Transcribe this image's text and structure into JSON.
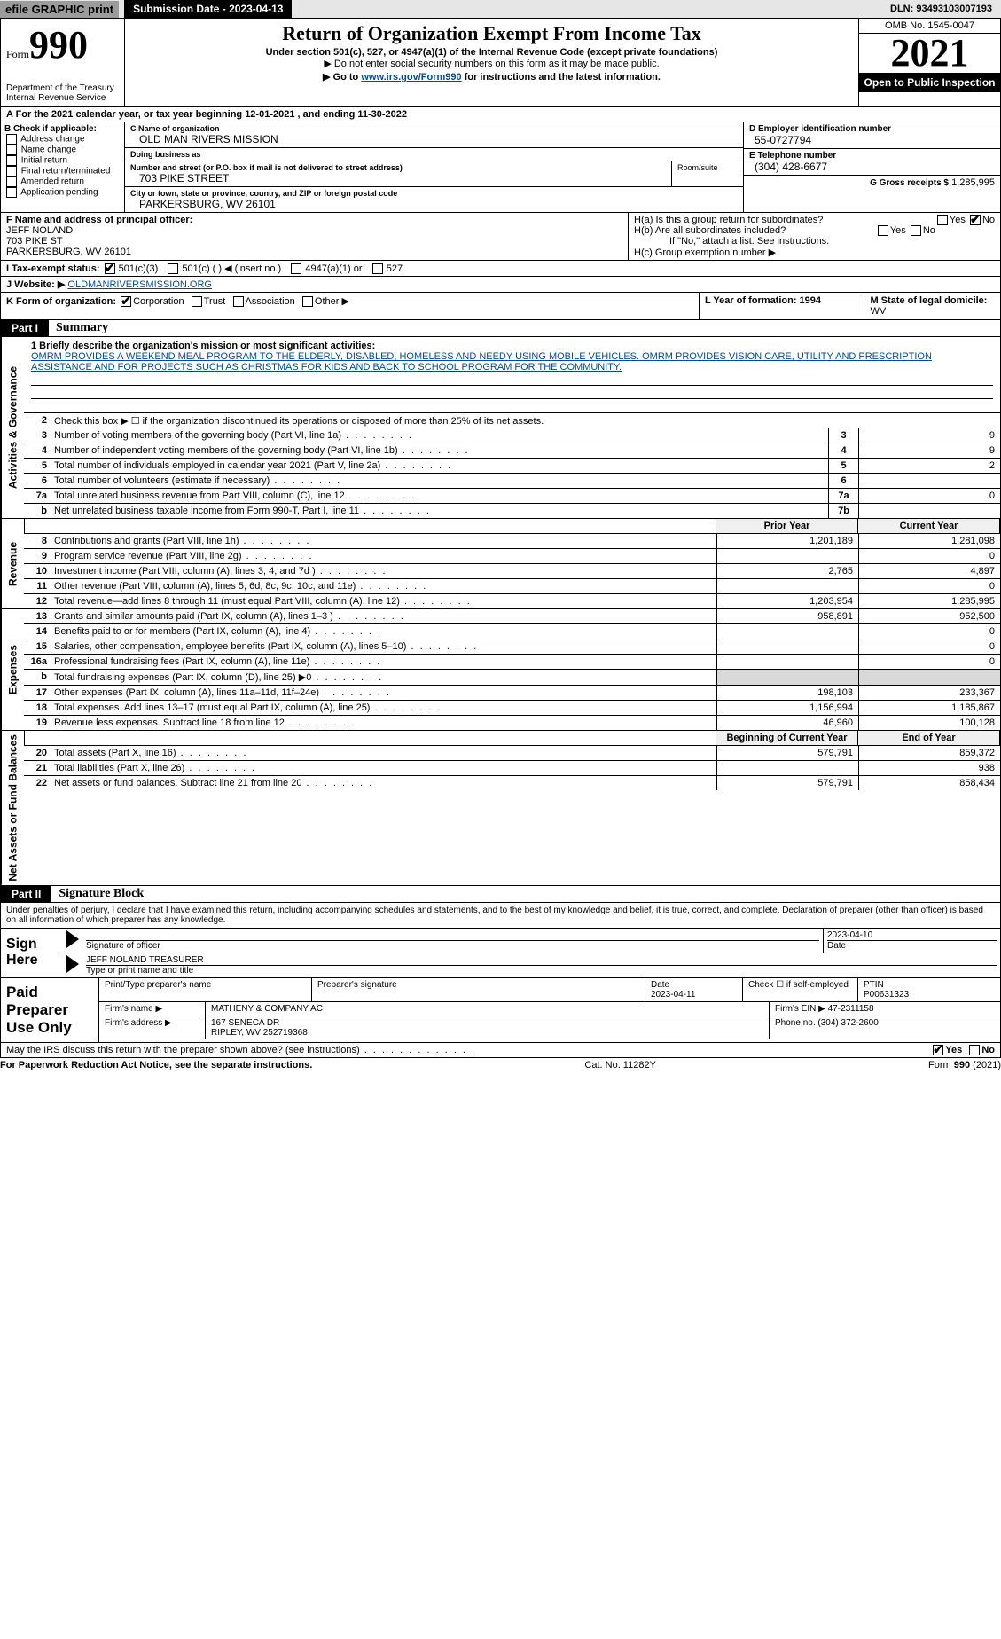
{
  "topbar": {
    "efile": "efile GRAPHIC print",
    "submission": "Submission Date - 2023-04-13",
    "dln": "DLN: 93493103007193"
  },
  "header": {
    "form_label": "Form",
    "form_number": "990",
    "dept": "Department of the Treasury Internal Revenue Service",
    "title": "Return of Organization Exempt From Income Tax",
    "subtitle": "Under section 501(c), 527, or 4947(a)(1) of the Internal Revenue Code (except private foundations)",
    "note1": "▶ Do not enter social security numbers on this form as it may be made public.",
    "note2_pre": "▶ Go to ",
    "note2_link": "www.irs.gov/Form990",
    "note2_post": " for instructions and the latest information.",
    "omb": "OMB No. 1545-0047",
    "year": "2021",
    "open": "Open to Public Inspection"
  },
  "period": "A For the 2021 calendar year, or tax year beginning 12-01-2021    , and ending 11-30-2022",
  "blockB": {
    "label": "B Check if applicable:",
    "opts": [
      "Address change",
      "Name change",
      "Initial return",
      "Final return/terminated",
      "Amended return",
      "Application pending"
    ]
  },
  "blockC": {
    "name_label": "C Name of organization",
    "name": "OLD MAN RIVERS MISSION",
    "dba_label": "Doing business as",
    "dba": "",
    "addr_label": "Number and street (or P.O. box if mail is not delivered to street address)",
    "room_label": "Room/suite",
    "addr": "703 PIKE STREET",
    "city_label": "City or town, state or province, country, and ZIP or foreign postal code",
    "city": "PARKERSBURG, WV  26101"
  },
  "blockDE": {
    "d_label": "D Employer identification number",
    "d_val": "55-0727794",
    "e_label": "E Telephone number",
    "e_val": "(304) 428-6677",
    "g_label": "G Gross receipts $",
    "g_val": "1,285,995"
  },
  "blockF": {
    "label": "F  Name and address of principal officer:",
    "name": "JEFF NOLAND",
    "addr1": "703 PIKE ST",
    "addr2": "PARKERSBURG, WV  26101"
  },
  "blockH": {
    "ha": "H(a)  Is this a group return for subordinates?",
    "hb": "H(b)  Are all subordinates included?",
    "hb_note": "If \"No,\" attach a list. See instructions.",
    "hc": "H(c)  Group exemption number ▶"
  },
  "taxstatus": {
    "label": "I   Tax-exempt status:",
    "opts": [
      "501(c)(3)",
      "501(c) (  ) ◀ (insert no.)",
      "4947(a)(1) or",
      "527"
    ]
  },
  "website": {
    "label": "J   Website: ▶",
    "val": "  OLDMANRIVERSMISSION.ORG"
  },
  "korg": {
    "label": "K Form of organization:",
    "opts": [
      "Corporation",
      "Trust",
      "Association",
      "Other ▶"
    ],
    "l": "L Year of formation: 1994",
    "m_label": "M State of legal domicile:",
    "m_val": "WV"
  },
  "partI": {
    "bar": "Part I",
    "title": "Summary",
    "mission_label": "1  Briefly describe the organization's mission or most significant activities:",
    "mission": "OMRM PROVIDES A WEEKEND MEAL PROGRAM TO THE ELDERLY, DISABLED, HOMELESS AND NEEDY USING MOBILE VEHICLES. OMRM PROVIDES VISION CARE, UTILITY AND PRESCRIPTION ASSISTANCE AND FOR PROJECTS SUCH AS CHRISTMAS FOR KIDS AND BACK TO SCHOOL PROGRAM FOR THE COMMUNITY.",
    "line2": "Check this box ▶ ☐  if the organization discontinued its operations or disposed of more than 25% of its net assets.",
    "sidelabels": {
      "ag": "Activities & Governance",
      "rev": "Revenue",
      "exp": "Expenses",
      "net": "Net Assets or Fund Balances"
    },
    "col_prior": "Prior Year",
    "col_curr": "Current Year",
    "col_boy": "Beginning of Current Year",
    "col_eoy": "End of Year",
    "lines_gov": [
      {
        "n": "3",
        "d": "Number of voting members of the governing body (Part VI, line 1a)",
        "box": "3",
        "v": "9"
      },
      {
        "n": "4",
        "d": "Number of independent voting members of the governing body (Part VI, line 1b)",
        "box": "4",
        "v": "9"
      },
      {
        "n": "5",
        "d": "Total number of individuals employed in calendar year 2021 (Part V, line 2a)",
        "box": "5",
        "v": "2"
      },
      {
        "n": "6",
        "d": "Total number of volunteers (estimate if necessary)",
        "box": "6",
        "v": ""
      },
      {
        "n": "7a",
        "d": "Total unrelated business revenue from Part VIII, column (C), line 12",
        "box": "7a",
        "v": "0"
      },
      {
        "n": "b",
        "d": "Net unrelated business taxable income from Form 990-T, Part I, line 11",
        "box": "7b",
        "v": ""
      }
    ],
    "lines_rev": [
      {
        "n": "8",
        "d": "Contributions and grants (Part VIII, line 1h)",
        "p": "1,201,189",
        "c": "1,281,098"
      },
      {
        "n": "9",
        "d": "Program service revenue (Part VIII, line 2g)",
        "p": "",
        "c": "0"
      },
      {
        "n": "10",
        "d": "Investment income (Part VIII, column (A), lines 3, 4, and 7d )",
        "p": "2,765",
        "c": "4,897"
      },
      {
        "n": "11",
        "d": "Other revenue (Part VIII, column (A), lines 5, 6d, 8c, 9c, 10c, and 11e)",
        "p": "",
        "c": "0"
      },
      {
        "n": "12",
        "d": "Total revenue—add lines 8 through 11 (must equal Part VIII, column (A), line 12)",
        "p": "1,203,954",
        "c": "1,285,995"
      }
    ],
    "lines_exp": [
      {
        "n": "13",
        "d": "Grants and similar amounts paid (Part IX, column (A), lines 1–3 )",
        "p": "958,891",
        "c": "952,500"
      },
      {
        "n": "14",
        "d": "Benefits paid to or for members (Part IX, column (A), line 4)",
        "p": "",
        "c": "0"
      },
      {
        "n": "15",
        "d": "Salaries, other compensation, employee benefits (Part IX, column (A), lines 5–10)",
        "p": "",
        "c": "0"
      },
      {
        "n": "16a",
        "d": "Professional fundraising fees (Part IX, column (A), line 11e)",
        "p": "",
        "c": "0"
      },
      {
        "n": "b",
        "d": "Total fundraising expenses (Part IX, column (D), line 25) ▶0",
        "p": "SHADE",
        "c": "SHADE"
      },
      {
        "n": "17",
        "d": "Other expenses (Part IX, column (A), lines 11a–11d, 11f–24e)",
        "p": "198,103",
        "c": "233,367"
      },
      {
        "n": "18",
        "d": "Total expenses. Add lines 13–17 (must equal Part IX, column (A), line 25)",
        "p": "1,156,994",
        "c": "1,185,867"
      },
      {
        "n": "19",
        "d": "Revenue less expenses. Subtract line 18 from line 12",
        "p": "46,960",
        "c": "100,128"
      }
    ],
    "lines_net": [
      {
        "n": "20",
        "d": "Total assets (Part X, line 16)",
        "p": "579,791",
        "c": "859,372"
      },
      {
        "n": "21",
        "d": "Total liabilities (Part X, line 26)",
        "p": "",
        "c": "938"
      },
      {
        "n": "22",
        "d": "Net assets or fund balances. Subtract line 21 from line 20",
        "p": "579,791",
        "c": "858,434"
      }
    ]
  },
  "partII": {
    "bar": "Part II",
    "title": "Signature Block",
    "decl": "Under penalties of perjury, I declare that I have examined this return, including accompanying schedules and statements, and to the best of my knowledge and belief, it is true, correct, and complete. Declaration of preparer (other than officer) is based on all information of which preparer has any knowledge."
  },
  "sign": {
    "left1": "Sign",
    "left2": "Here",
    "sig_label": "Signature of officer",
    "date_label": "Date",
    "date_val": "2023-04-10",
    "name": "JEFF NOLAND  TREASURER",
    "name_label": "Type or print name and title"
  },
  "paid": {
    "left": "Paid Preparer Use Only",
    "h1": "Print/Type preparer's name",
    "h2": "Preparer's signature",
    "h3": "Date",
    "h3v": "2023-04-11",
    "h4": "Check ☐ if self-employed",
    "h5": "PTIN",
    "h5v": "P00631323",
    "firm_name_label": "Firm's name    ▶",
    "firm_name": "MATHENY & COMPANY AC",
    "firm_ein_label": "Firm's EIN ▶",
    "firm_ein": "47-2311158",
    "firm_addr_label": "Firm's address ▶",
    "firm_addr1": "167 SENECA DR",
    "firm_addr2": "RIPLEY, WV  252719368",
    "phone_label": "Phone no.",
    "phone": "(304) 372-2600"
  },
  "mayirs": "May the IRS discuss this return with the preparer shown above? (see instructions)",
  "footer": {
    "left": "For Paperwork Reduction Act Notice, see the separate instructions.",
    "mid": "Cat. No. 11282Y",
    "right": "Form 990 (2021)"
  }
}
